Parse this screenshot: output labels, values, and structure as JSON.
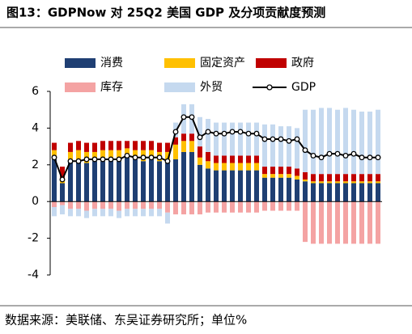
{
  "chart_data": {
    "type": "bar",
    "title": "图13：GDPNow 对 25Q2 美国 GDP 及分项贡献度预测",
    "source": "数据来源：美联储、东吴证券研究所；单位%",
    "ylim": [
      -4,
      6
    ],
    "yticks": [
      -4,
      -2,
      0,
      2,
      4,
      6
    ],
    "series": [
      {
        "name": "消费",
        "color": "#1f3f73",
        "values": [
          2.3,
          1.0,
          2.2,
          2.2,
          2.1,
          2.2,
          2.2,
          2.3,
          2.2,
          2.4,
          2.3,
          2.2,
          2.3,
          2.2,
          2.1,
          2.3,
          2.7,
          2.7,
          2.0,
          1.8,
          1.7,
          1.7,
          1.7,
          1.7,
          1.7,
          1.7,
          1.3,
          1.3,
          1.3,
          1.3,
          1.2,
          1.1,
          1.0,
          1.0,
          1.0,
          1.0,
          1.0,
          1.0,
          1.0,
          1.0,
          1.0
        ]
      },
      {
        "name": "固定资产",
        "color": "#ffc000",
        "values": [
          0.5,
          0.3,
          0.5,
          0.6,
          0.6,
          0.5,
          0.6,
          0.5,
          0.6,
          0.5,
          0.5,
          0.6,
          0.5,
          0.5,
          0.6,
          0.8,
          0.6,
          0.6,
          0.4,
          0.4,
          0.4,
          0.4,
          0.4,
          0.4,
          0.4,
          0.4,
          0.2,
          0.2,
          0.2,
          0.2,
          0.2,
          0.1,
          0.1,
          0.1,
          0.1,
          0.1,
          0.1,
          0.1,
          0.1,
          0.1,
          0.1
        ]
      },
      {
        "name": "政府",
        "color": "#c00000",
        "values": [
          0.4,
          0.6,
          0.5,
          0.5,
          0.5,
          0.5,
          0.5,
          0.5,
          0.5,
          0.4,
          0.5,
          0.5,
          0.5,
          0.5,
          0.5,
          0.4,
          0.4,
          0.4,
          0.6,
          0.5,
          0.4,
          0.4,
          0.4,
          0.4,
          0.4,
          0.4,
          0.4,
          0.4,
          0.4,
          0.4,
          0.4,
          0.4,
          0.4,
          0.4,
          0.4,
          0.4,
          0.4,
          0.4,
          0.4,
          0.4,
          0.4
        ]
      },
      {
        "name": "库存",
        "color": "#f4a3a3",
        "values": [
          -0.3,
          -0.2,
          -0.4,
          -0.4,
          -0.5,
          -0.4,
          -0.4,
          -0.4,
          -0.5,
          -0.4,
          -0.4,
          -0.4,
          -0.4,
          -0.4,
          -0.6,
          -0.7,
          -0.7,
          -0.7,
          -0.7,
          -0.6,
          -0.6,
          -0.6,
          -0.6,
          -0.6,
          -0.6,
          -0.6,
          -0.5,
          -0.5,
          -0.5,
          -0.5,
          -0.5,
          -2.2,
          -2.3,
          -2.3,
          -2.3,
          -2.3,
          -2.3,
          -2.3,
          -2.3,
          -2.3,
          -2.3
        ]
      },
      {
        "name": "外贸",
        "color": "#c5d9ef",
        "values": [
          -0.5,
          -0.5,
          -0.4,
          -0.4,
          -0.4,
          -0.4,
          -0.4,
          -0.4,
          -0.4,
          -0.4,
          -0.4,
          -0.4,
          -0.4,
          -0.4,
          -0.6,
          0.8,
          1.6,
          1.6,
          1.6,
          1.8,
          1.8,
          1.8,
          1.8,
          1.8,
          1.8,
          1.8,
          2.3,
          2.3,
          2.2,
          2.2,
          2.2,
          3.4,
          3.5,
          3.6,
          3.6,
          3.5,
          3.6,
          3.5,
          3.4,
          3.4,
          3.5
        ]
      },
      {
        "name": "GDP",
        "color": "#000000",
        "line": true,
        "values": [
          2.4,
          1.2,
          2.2,
          2.2,
          2.3,
          2.3,
          2.3,
          2.3,
          2.3,
          2.5,
          2.4,
          2.4,
          2.4,
          2.4,
          2.2,
          3.8,
          4.6,
          4.6,
          3.5,
          3.8,
          3.7,
          3.7,
          3.8,
          3.8,
          3.7,
          3.7,
          3.4,
          3.4,
          3.4,
          3.3,
          3.4,
          2.8,
          2.5,
          2.4,
          2.6,
          2.6,
          2.5,
          2.6,
          2.4,
          2.4,
          2.4
        ]
      }
    ]
  }
}
